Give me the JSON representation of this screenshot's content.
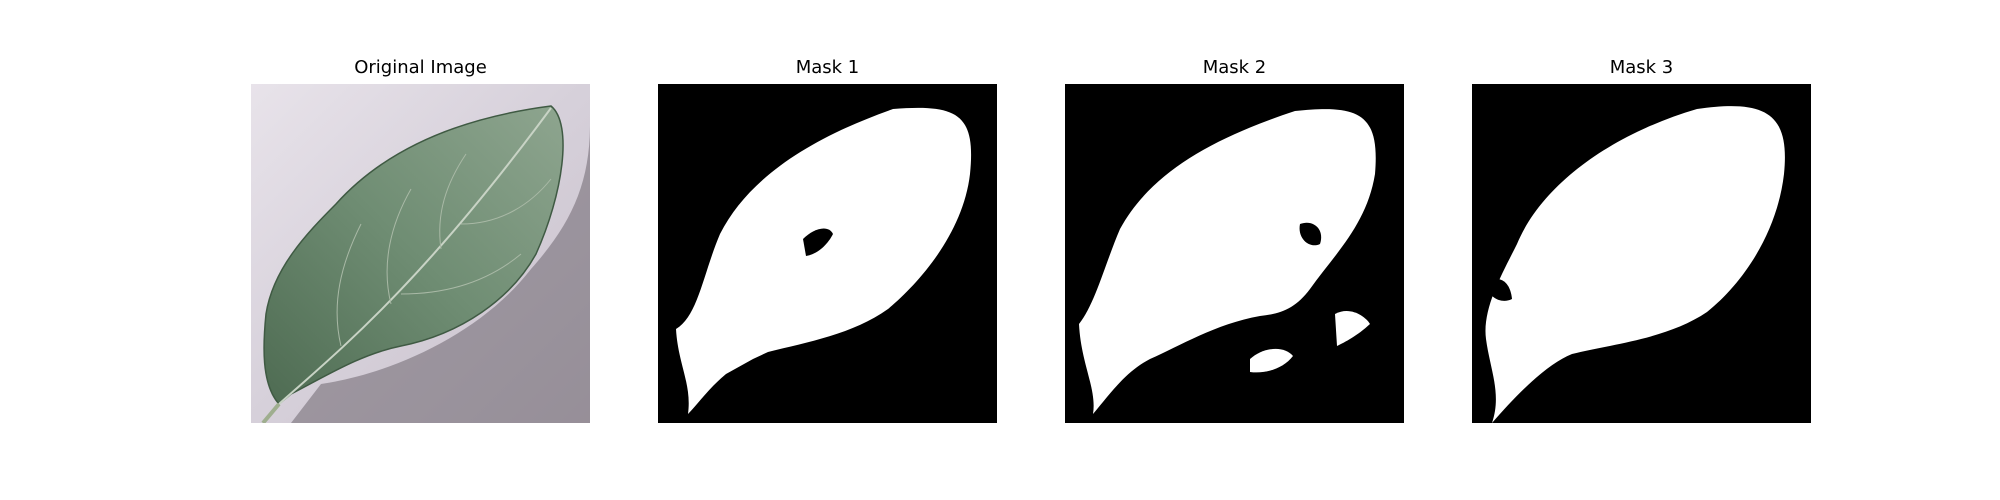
{
  "figure": {
    "panels": [
      {
        "title": "Original Image"
      },
      {
        "title": "Mask 1"
      },
      {
        "title": "Mask 2"
      },
      {
        "title": "Mask 3"
      }
    ]
  },
  "colors": {
    "background": "#ffffff",
    "mask_background": "#000000",
    "mask_foreground": "#ffffff",
    "leaf": "#5f7d63",
    "surface": "#d8d3dc"
  }
}
